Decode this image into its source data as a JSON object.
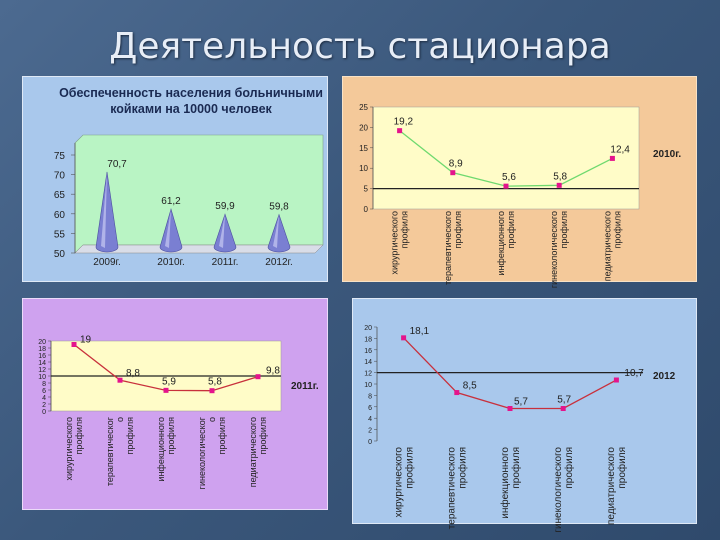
{
  "slide": {
    "title": "Деятельность стационара"
  },
  "colors": {
    "panel1": "#a9c8ec",
    "panel2": "#f4c99a",
    "panel3": "#cfa2ef",
    "panel4": "#a9c8ec",
    "plot1": "#b9f4c4",
    "plot2": "#fffcc8",
    "plot3": "#fffcc8",
    "plot4": "#a9c8ec",
    "line2": "#6fd96f",
    "line34": "#c8303c",
    "marker": "#e4148c",
    "cone": "#7a7fd2"
  },
  "chart_data": [
    {
      "type": "bar",
      "title": "Обеспеченность населения больничными койками на 10000 человек",
      "title_lines": [
        "Обеспеченность населения больничными",
        "койками на 10000 человек"
      ],
      "categories": [
        "2009г.",
        "2010г.",
        "2011г.",
        "2012г."
      ],
      "values": [
        70.7,
        61.2,
        59.9,
        59.8
      ],
      "value_labels": [
        "70,7",
        "61,2",
        "59,9",
        "59,8"
      ],
      "yticks": [
        "75",
        "70",
        "65",
        "60",
        "55",
        "50"
      ],
      "ylim": [
        50,
        75
      ],
      "bar_shape": "cone",
      "grid": false
    },
    {
      "type": "line",
      "legend": "2010г.",
      "categories": [
        "хирургического профиля",
        "терапевтического профиля",
        "инфекционного профиля",
        "гинекологического профиля",
        "педиатрического профиля"
      ],
      "values": [
        19.2,
        8.9,
        5.6,
        5.8,
        12.4
      ],
      "value_labels": [
        "19,2",
        "8,9",
        "5,6",
        "5,8",
        "12,4"
      ],
      "yticks": [
        "25",
        "20",
        "15",
        "10",
        "5",
        "0"
      ],
      "ylim": [
        0,
        25
      ],
      "reference_line": 5
    },
    {
      "type": "line",
      "legend": "2011г.",
      "categories": [
        "хирургического профиля",
        "терапевтическог о профиля",
        "инфекционного профиля",
        "гинекологическог о профиля",
        "педиатрического профиля"
      ],
      "values": [
        19,
        8.8,
        5.9,
        5.8,
        9.8
      ],
      "value_labels": [
        "19",
        "8,8",
        "5,9",
        "5,8",
        "9,8"
      ],
      "yticks": [
        "20",
        "18",
        "16",
        "14",
        "12",
        "10",
        "8",
        "6",
        "4",
        "2",
        "0"
      ],
      "ylim": [
        0,
        20
      ],
      "reference_line": 10
    },
    {
      "type": "line",
      "legend": "2012",
      "categories": [
        "хирургического профиля",
        "терапевтического профиля",
        "инфекционного профиля",
        "гинекологического профиля",
        "педиатрического профиля"
      ],
      "values": [
        18.1,
        8.5,
        5.7,
        5.7,
        10.7
      ],
      "value_labels": [
        "18,1",
        "8,5",
        "5,7",
        "5,7",
        "10,7"
      ],
      "yticks": [
        "20",
        "18",
        "16",
        "14",
        "12",
        "10",
        "8",
        "6",
        "4",
        "2",
        "0"
      ],
      "ylim": [
        0,
        20
      ],
      "reference_line": 12
    }
  ]
}
